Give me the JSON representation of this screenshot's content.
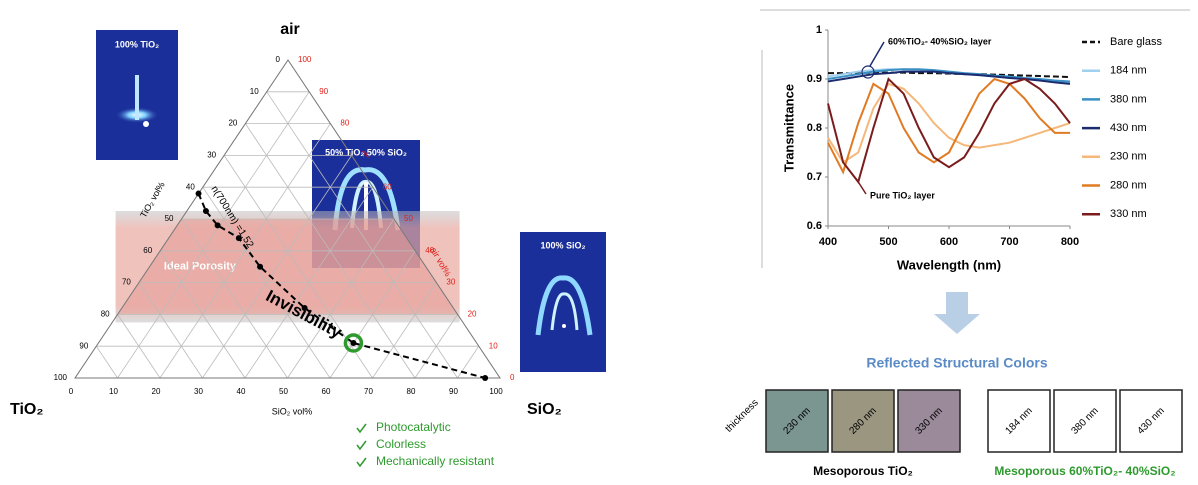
{
  "ternary": {
    "top_label": "air",
    "left_label": "TiO₂",
    "right_label": "SiO₂",
    "tio2_axis_label": "TiO₂ vol%",
    "sio2_axis_label": "SiO₂ vol%",
    "air_axis_label": "air vol%",
    "tio2_ticks": [
      0,
      10,
      20,
      30,
      40,
      50,
      60,
      70,
      80,
      90,
      100
    ],
    "sio2_ticks": [
      0,
      10,
      20,
      30,
      40,
      50,
      60,
      70,
      80,
      90,
      100
    ],
    "air_ticks": [
      0,
      10,
      20,
      30,
      40,
      50,
      60,
      70,
      80,
      90,
      100
    ],
    "ideal_porosity": {
      "label": "Ideal Porosity",
      "air_range": [
        20,
        50
      ]
    },
    "curve_label": "n(700nm) =1.52",
    "points": [
      {
        "TiO2": 42,
        "SiO2": 0
      },
      {
        "TiO2": 43,
        "SiO2": 4.5
      },
      {
        "TiO2": 42.5,
        "SiO2": 9.5
      },
      {
        "TiO2": 39.5,
        "SiO2": 16.5
      },
      {
        "TiO2": 39,
        "SiO2": 26
      },
      {
        "TiO2": 35,
        "SiO2": 43
      },
      {
        "TiO2": 29,
        "SiO2": 60
      },
      {
        "TiO2": 3.5,
        "SiO2": 96.5
      }
    ],
    "highlight": {
      "label": "Invisibility",
      "TiO2": 29,
      "SiO2": 60
    },
    "insets": [
      "100% TiO₂",
      "50% TiO₂ 50% SiO₂",
      "100% SiO₂"
    ],
    "checklist": [
      "Photocatalytic",
      "Colorless",
      "Mechanically resistant"
    ]
  },
  "chart_data": {
    "type": "line",
    "x_label": "Wavelength (nm)",
    "y_label": "Transmittance",
    "x": [
      400,
      425,
      450,
      475,
      500,
      525,
      550,
      575,
      600,
      625,
      650,
      675,
      700,
      725,
      750,
      775,
      800
    ],
    "xlim": [
      400,
      800
    ],
    "xticks": [
      400,
      500,
      600,
      700,
      800
    ],
    "ylim": [
      0.6,
      1
    ],
    "yticks": [
      0.6,
      0.7,
      0.8,
      0.9,
      1
    ],
    "series": [
      {
        "name": "Bare glass",
        "color": "#111111",
        "dashed": true,
        "values": [
          0.912,
          0.912,
          0.912,
          0.913,
          0.913,
          0.913,
          0.912,
          0.912,
          0.911,
          0.91,
          0.91,
          0.909,
          0.908,
          0.907,
          0.906,
          0.905,
          0.904
        ]
      },
      {
        "name": "184 nm",
        "color": "#9fd0ee",
        "values": [
          0.905,
          0.91,
          0.915,
          0.918,
          0.92,
          0.92,
          0.918,
          0.915,
          0.912,
          0.91,
          0.908,
          0.905,
          0.903,
          0.9,
          0.898,
          0.895,
          0.893
        ]
      },
      {
        "name": "380 nm",
        "color": "#3a8fc4",
        "values": [
          0.9,
          0.905,
          0.91,
          0.915,
          0.918,
          0.92,
          0.92,
          0.918,
          0.915,
          0.912,
          0.91,
          0.907,
          0.905,
          0.902,
          0.9,
          0.897,
          0.895
        ]
      },
      {
        "name": "430 nm",
        "color": "#1c2a6e",
        "values": [
          0.895,
          0.9,
          0.905,
          0.91,
          0.912,
          0.915,
          0.915,
          0.915,
          0.912,
          0.91,
          0.908,
          0.905,
          0.902,
          0.9,
          0.897,
          0.893,
          0.89
        ]
      },
      {
        "name": "230 nm",
        "color": "#f5b77a",
        "values": [
          0.78,
          0.73,
          0.75,
          0.84,
          0.89,
          0.88,
          0.85,
          0.81,
          0.78,
          0.765,
          0.76,
          0.765,
          0.77,
          0.78,
          0.79,
          0.8,
          0.81
        ]
      },
      {
        "name": "280 nm",
        "color": "#e07b24",
        "values": [
          0.77,
          0.71,
          0.81,
          0.89,
          0.87,
          0.8,
          0.75,
          0.73,
          0.75,
          0.81,
          0.87,
          0.9,
          0.89,
          0.86,
          0.82,
          0.79,
          0.79
        ]
      },
      {
        "name": "330 nm",
        "color": "#7a1c1c",
        "values": [
          0.85,
          0.73,
          0.69,
          0.8,
          0.9,
          0.87,
          0.8,
          0.74,
          0.72,
          0.74,
          0.79,
          0.85,
          0.89,
          0.9,
          0.88,
          0.85,
          0.81
        ]
      }
    ],
    "annotations": [
      "60%TiO₂- 40%SiO₂ layer",
      "Pure TiO₂ layer"
    ]
  },
  "colors": {
    "title": "Reflected Structural Colors",
    "axis_label": "thickness",
    "groups": [
      {
        "caption": "Mesoporous TiO₂",
        "caption_color": "#000000",
        "swatches": [
          {
            "label": "230 nm",
            "color": "#7b9591"
          },
          {
            "label": "280 nm",
            "color": "#9a9680"
          },
          {
            "label": "330 nm",
            "color": "#9a8a9a"
          }
        ]
      },
      {
        "caption": "Mesoporous 60%TiO₂- 40%SiO₂",
        "caption_color": "#2e9a2e",
        "swatches": [
          {
            "label": "184 nm",
            "color": "#ffffff"
          },
          {
            "label": "380 nm",
            "color": "#ffffff"
          },
          {
            "label": "430 nm",
            "color": "#ffffff"
          }
        ]
      }
    ]
  }
}
